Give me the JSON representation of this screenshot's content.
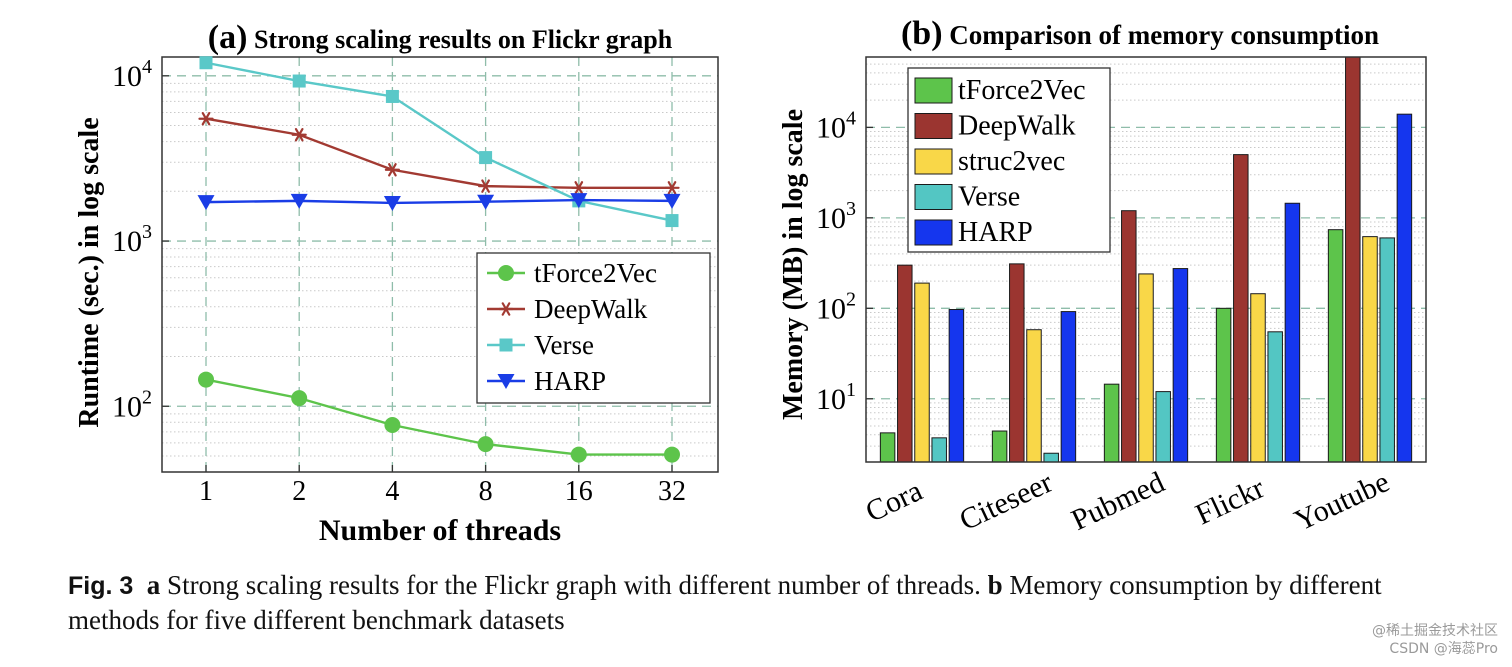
{
  "chart_data": [
    {
      "type": "line",
      "panel_label": "(a)",
      "title": "Strong scaling results on Flickr graph",
      "xlabel": "Number of threads",
      "ylabel": "Runtime (sec.) in log scale",
      "yscale": "log",
      "ylim": [
        40,
        13000
      ],
      "yticks": [
        100,
        1000,
        10000
      ],
      "categories": [
        "1",
        "2",
        "4",
        "8",
        "16",
        "32"
      ],
      "legend_position": "center-right",
      "series": [
        {
          "name": "tForce2Vec",
          "color": "#5dc44b",
          "marker": "circle",
          "values": [
            145,
            112,
            77,
            59,
            51,
            51
          ]
        },
        {
          "name": "DeepWalk",
          "color": "#a23a32",
          "marker": "star",
          "values": [
            5500,
            4400,
            2700,
            2150,
            2100,
            2100
          ]
        },
        {
          "name": "Verse",
          "color": "#5ac8c8",
          "marker": "square",
          "values": [
            12000,
            9300,
            7500,
            3200,
            1750,
            1330
          ]
        },
        {
          "name": "HARP",
          "color": "#1a3de6",
          "marker": "triangle-down",
          "values": [
            1720,
            1750,
            1700,
            1730,
            1770,
            1750
          ]
        }
      ]
    },
    {
      "type": "bar",
      "panel_label": "(b)",
      "title": "Comparison of memory consumption",
      "xlabel": "",
      "ylabel": "Memory (MB) in log scale",
      "yscale": "log",
      "ylim": [
        2,
        60000
      ],
      "yticks": [
        10,
        100,
        1000,
        10000
      ],
      "categories": [
        "Cora",
        "Citeseer",
        "Pubmed",
        "Flickr",
        "Youtube"
      ],
      "legend_position": "top-left",
      "series": [
        {
          "name": "tForce2Vec",
          "color": "#5dc44b",
          "values": [
            4.2,
            4.4,
            14.5,
            100,
            740
          ]
        },
        {
          "name": "DeepWalk",
          "color": "#9b3530",
          "values": [
            300,
            310,
            1200,
            5000,
            60000
          ]
        },
        {
          "name": "struc2vec",
          "color": "#f9d748",
          "values": [
            190,
            58,
            240,
            145,
            620
          ]
        },
        {
          "name": "Verse",
          "color": "#53c6c3",
          "values": [
            3.7,
            2.5,
            12,
            55,
            600
          ]
        },
        {
          "name": "HARP",
          "color": "#1536ee",
          "values": [
            97,
            92,
            275,
            1450,
            14000
          ]
        }
      ]
    }
  ],
  "caption": {
    "fig_label": "Fig. 3",
    "part_a": "a",
    "text_a": " Strong scaling results for the Flickr graph with different number of threads. ",
    "part_b": "b",
    "text_b": " Memory consumption by different methods for five different benchmark datasets"
  },
  "watermark": {
    "line1": "@稀土掘金技术社区",
    "line2": "CSDN @海蕊Pro"
  }
}
